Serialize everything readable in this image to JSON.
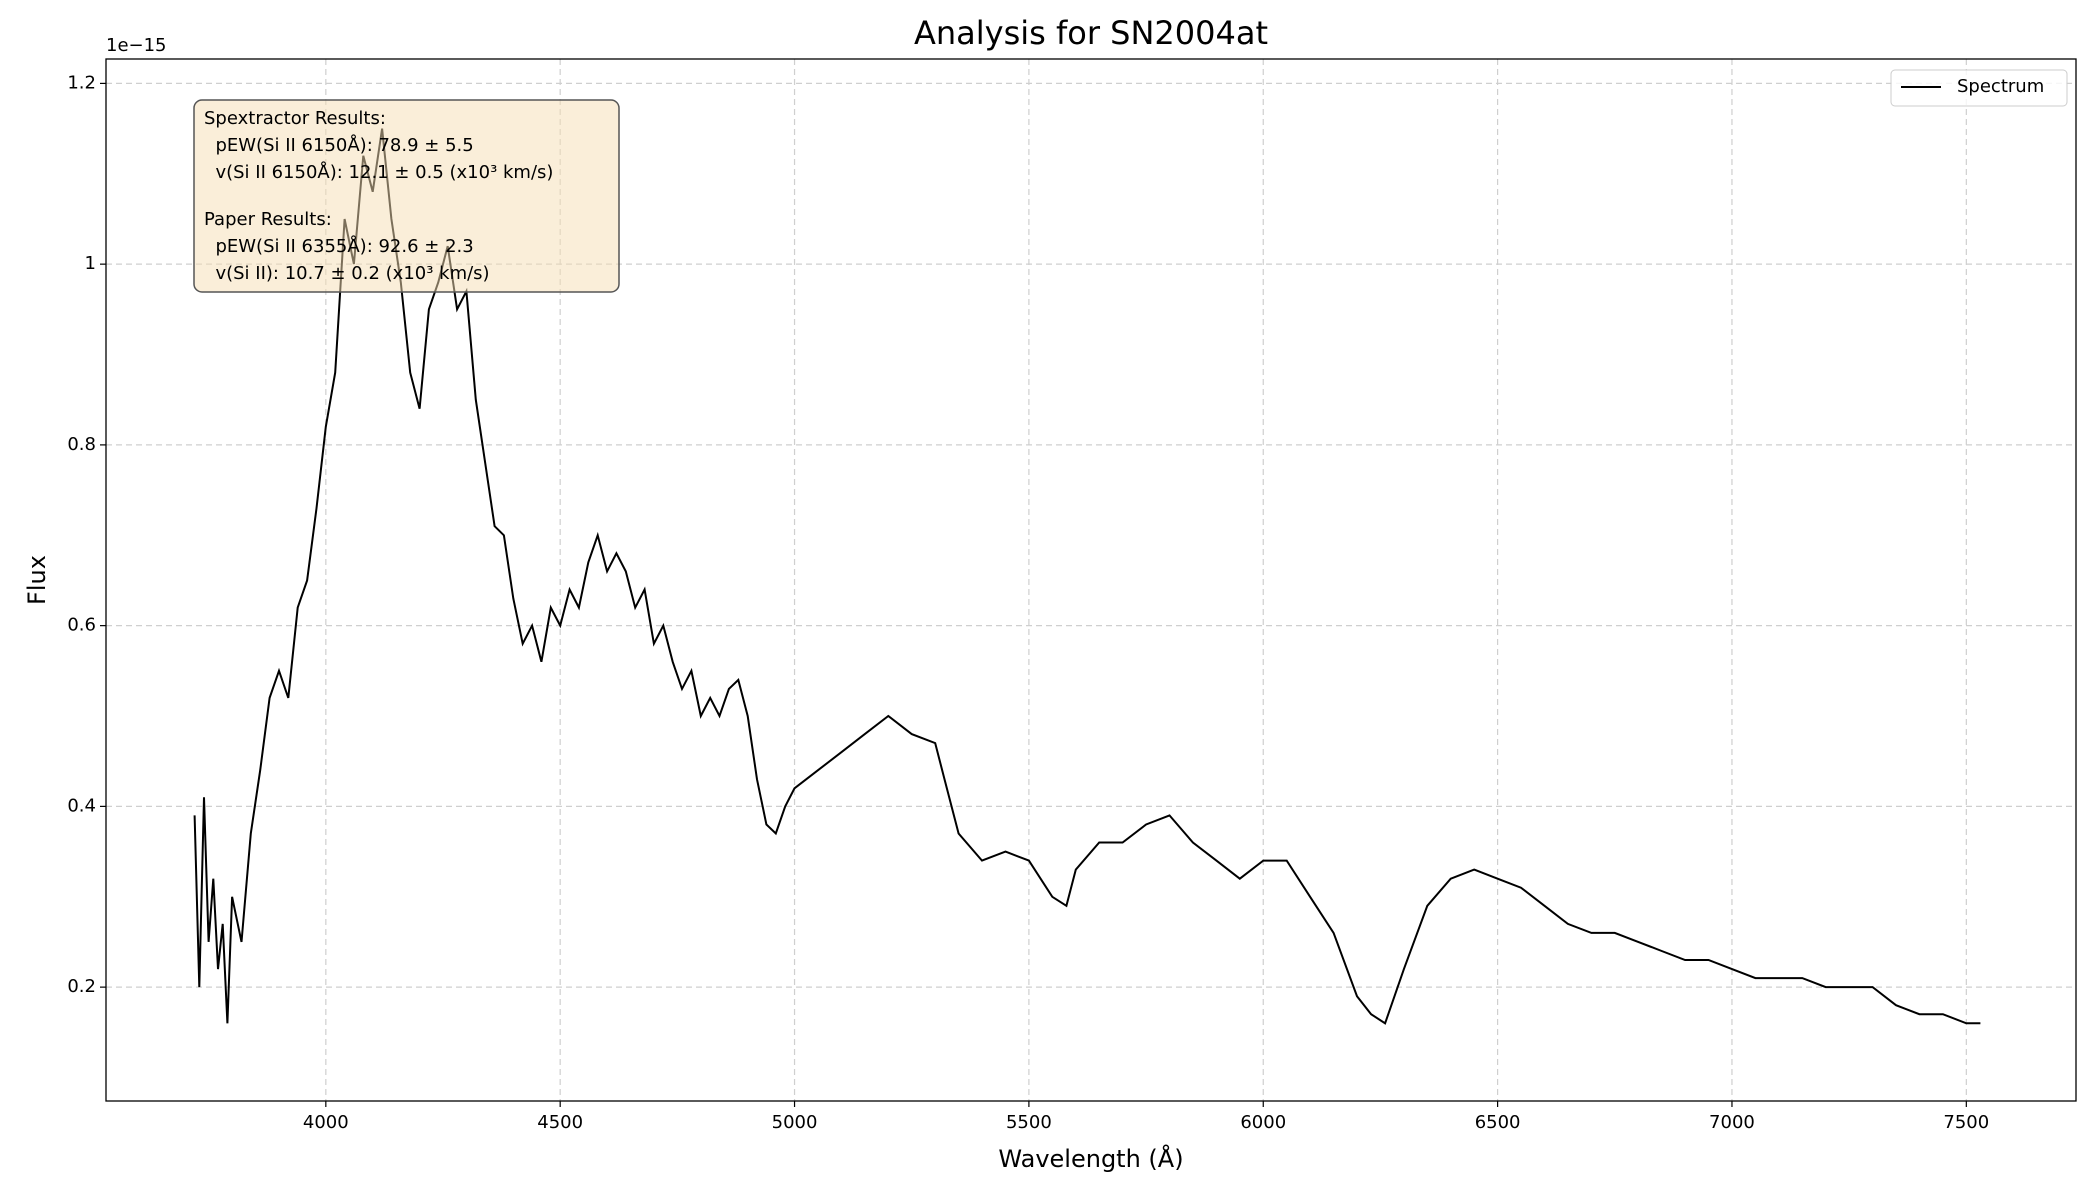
{
  "chart_data": {
    "type": "line",
    "title": "Analysis for SN2004at",
    "xlabel": "Wavelength (Å)",
    "ylabel": "Flux",
    "y_offset_label": "1e−15",
    "x": [
      3720,
      3730,
      3740,
      3750,
      3760,
      3770,
      3780,
      3790,
      3800,
      3820,
      3840,
      3860,
      3880,
      3900,
      3920,
      3940,
      3960,
      3980,
      4000,
      4020,
      4040,
      4060,
      4080,
      4100,
      4120,
      4140,
      4160,
      4180,
      4200,
      4220,
      4240,
      4260,
      4280,
      4300,
      4320,
      4340,
      4360,
      4380,
      4400,
      4420,
      4440,
      4460,
      4480,
      4500,
      4520,
      4540,
      4560,
      4580,
      4600,
      4620,
      4640,
      4660,
      4680,
      4700,
      4720,
      4740,
      4760,
      4780,
      4800,
      4820,
      4840,
      4860,
      4880,
      4900,
      4920,
      4940,
      4960,
      4980,
      5000,
      5050,
      5100,
      5150,
      5200,
      5250,
      5300,
      5320,
      5350,
      5400,
      5450,
      5500,
      5550,
      5580,
      5600,
      5650,
      5700,
      5750,
      5800,
      5850,
      5900,
      5950,
      6000,
      6050,
      6100,
      6150,
      6200,
      6230,
      6260,
      6280,
      6300,
      6350,
      6400,
      6450,
      6500,
      6550,
      6600,
      6650,
      6700,
      6750,
      6800,
      6850,
      6900,
      6950,
      7000,
      7050,
      7100,
      7150,
      7200,
      7250,
      7300,
      7350,
      7400,
      7450,
      7500,
      7530
    ],
    "series": [
      {
        "name": "Spectrum",
        "color": "#000000",
        "values": [
          0.39,
          0.2,
          0.41,
          0.25,
          0.32,
          0.22,
          0.27,
          0.16,
          0.3,
          0.25,
          0.37,
          0.44,
          0.52,
          0.55,
          0.52,
          0.62,
          0.65,
          0.73,
          0.82,
          0.88,
          1.05,
          1.0,
          1.12,
          1.08,
          1.15,
          1.05,
          0.98,
          0.88,
          0.84,
          0.95,
          0.98,
          1.02,
          0.95,
          0.97,
          0.85,
          0.78,
          0.71,
          0.7,
          0.63,
          0.58,
          0.6,
          0.56,
          0.62,
          0.6,
          0.64,
          0.62,
          0.67,
          0.7,
          0.66,
          0.68,
          0.66,
          0.62,
          0.64,
          0.58,
          0.6,
          0.56,
          0.53,
          0.55,
          0.5,
          0.52,
          0.5,
          0.53,
          0.54,
          0.5,
          0.43,
          0.38,
          0.37,
          0.4,
          0.42,
          0.44,
          0.46,
          0.48,
          0.5,
          0.48,
          0.47,
          0.43,
          0.37,
          0.34,
          0.35,
          0.34,
          0.3,
          0.29,
          0.33,
          0.36,
          0.36,
          0.38,
          0.39,
          0.36,
          0.34,
          0.32,
          0.34,
          0.34,
          0.3,
          0.26,
          0.19,
          0.17,
          0.16,
          0.19,
          0.22,
          0.29,
          0.32,
          0.33,
          0.32,
          0.31,
          0.29,
          0.27,
          0.26,
          0.26,
          0.25,
          0.24,
          0.23,
          0.23,
          0.22,
          0.21,
          0.21,
          0.21,
          0.2,
          0.2,
          0.2,
          0.18,
          0.17,
          0.17,
          0.16,
          0.16
        ]
      }
    ],
    "xlim": [
      3531,
      7734
    ],
    "ylim": [
      0.074,
      1.227
    ],
    "xticks": [
      4000,
      4500,
      5000,
      5500,
      6000,
      6500,
      7000,
      7500
    ],
    "yticks": [
      0.2,
      0.4,
      0.6,
      0.8,
      1.0,
      1.2
    ],
    "grid": true,
    "legend": "upper right",
    "annotation": {
      "lines": [
        "Spextractor Results:",
        "  pEW(Si II 6150Å): 78.9 ± 5.5",
        "  v(Si II 6150Å): 12.1 ± 0.5 (x10³ km/s)",
        "Paper Results:",
        "  pEW(Si II 6355Å): 92.6 ± 2.3",
        "  v(Si II): 10.7 ± 0.2 (x10³ km/s)"
      ]
    }
  }
}
